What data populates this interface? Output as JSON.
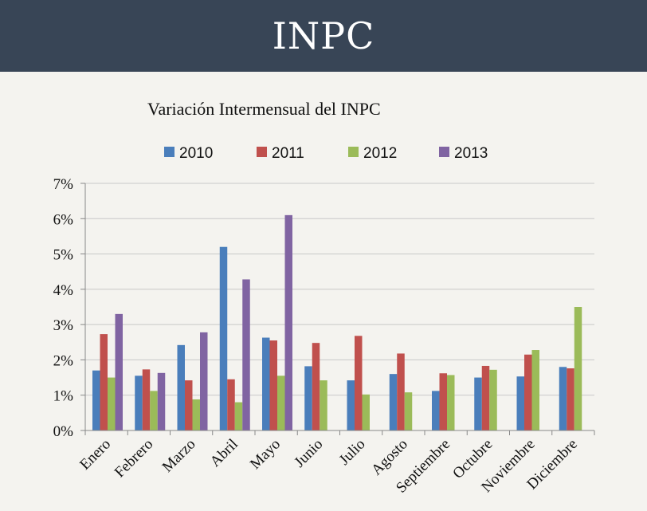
{
  "header": {
    "title": "INPC"
  },
  "chart_data": {
    "type": "bar",
    "title": "Variación Intermensual del INPC",
    "xlabel": "",
    "ylabel": "",
    "categories": [
      "Enero",
      "Febrero",
      "Marzo",
      "Abril",
      "Mayo",
      "Junio",
      "Julio",
      "Agosto",
      "Septiembre",
      "Octubre",
      "Noviembre",
      "Diciembre"
    ],
    "ylim": [
      0,
      7
    ],
    "yticks": [
      0,
      1,
      2,
      3,
      4,
      5,
      6,
      7
    ],
    "ytick_labels": [
      "0%",
      "1%",
      "2%",
      "3%",
      "4%",
      "5%",
      "6%",
      "7%"
    ],
    "grid": true,
    "legend_position": "top",
    "series": [
      {
        "name": "2010",
        "color": "#4a7ebb",
        "values": [
          1.7,
          1.55,
          2.42,
          5.2,
          2.63,
          1.82,
          1.42,
          1.6,
          1.12,
          1.5,
          1.53,
          1.8
        ]
      },
      {
        "name": "2011",
        "color": "#c0504d",
        "values": [
          2.73,
          1.73,
          1.42,
          1.45,
          2.55,
          2.48,
          2.68,
          2.18,
          1.62,
          1.83,
          2.15,
          1.76
        ]
      },
      {
        "name": "2012",
        "color": "#9bbb59",
        "values": [
          1.5,
          1.12,
          0.88,
          0.8,
          1.55,
          1.42,
          1.02,
          1.08,
          1.57,
          1.72,
          2.28,
          3.5
        ]
      },
      {
        "name": "2013",
        "color": "#8064a2",
        "values": [
          3.3,
          1.63,
          2.78,
          4.28,
          6.1,
          null,
          null,
          null,
          null,
          null,
          null,
          null
        ]
      }
    ]
  }
}
